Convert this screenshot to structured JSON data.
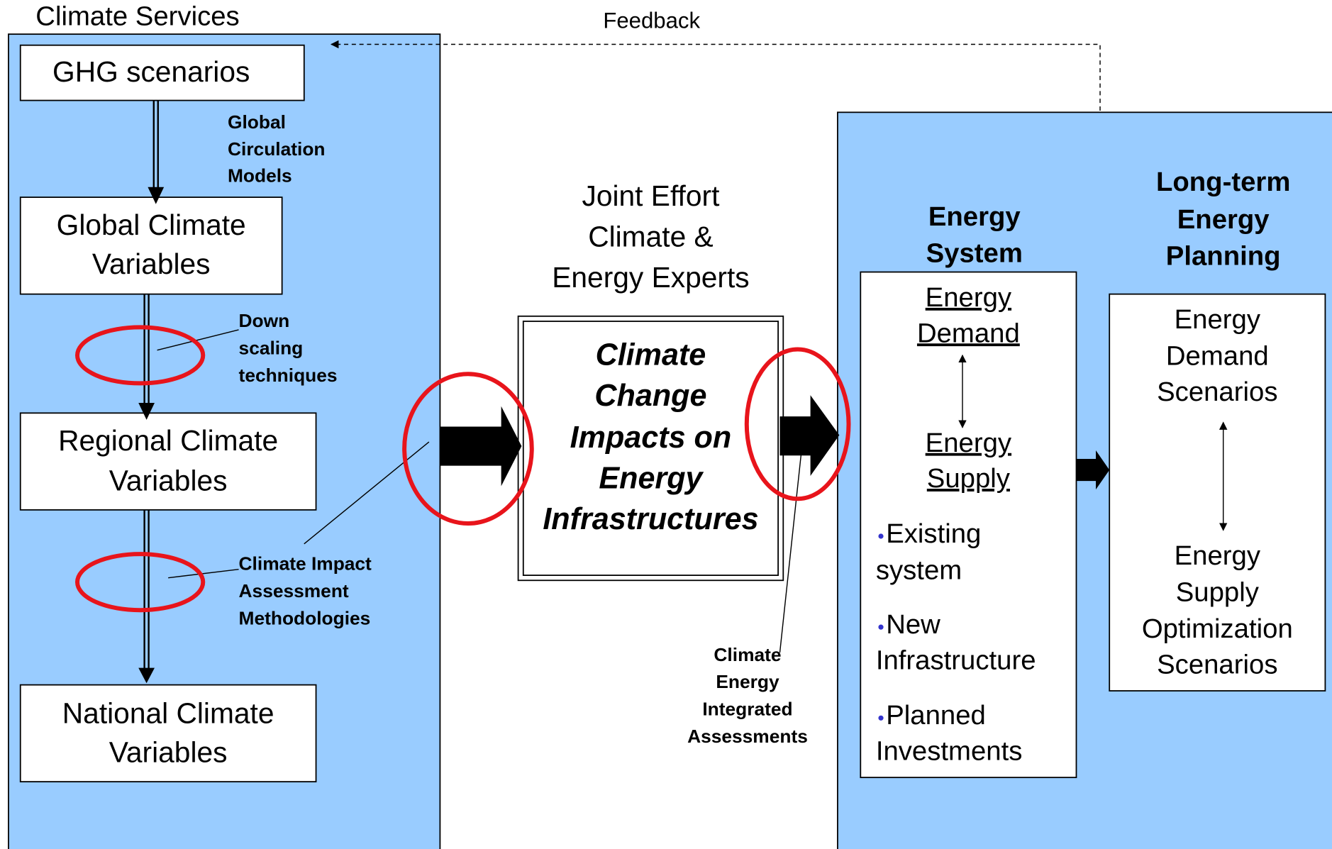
{
  "left_panel": {
    "title": "Climate Services",
    "boxes": [
      [
        "GHG scenarios"
      ],
      [
        "Global Climate",
        "Variables"
      ],
      [
        "Regional Climate",
        "Variables"
      ],
      [
        "National Climate",
        "Variables"
      ]
    ],
    "labels": [
      [
        "Global",
        "Circulation",
        "Models"
      ],
      [
        "Down",
        "scaling",
        "techniques"
      ],
      [
        "Climate Impact",
        "Assessment",
        "Methodologies"
      ]
    ]
  },
  "feedback": "Feedback",
  "center": {
    "heading": [
      "Joint Effort",
      "Climate &",
      "Energy Experts"
    ],
    "box": [
      "Climate",
      "Change",
      "Impacts on",
      "Energy",
      "Infrastructures"
    ],
    "label": [
      "Climate",
      "Energy",
      "Integrated",
      "Assessments"
    ]
  },
  "energy_system": {
    "title": [
      "Energy",
      "System"
    ],
    "demand": [
      "Energy",
      "Demand"
    ],
    "supply": [
      "Energy",
      "Supply"
    ],
    "items": [
      [
        "Existing",
        "system"
      ],
      [
        "New",
        "Infrastructure"
      ],
      [
        "Planned",
        "Investments"
      ]
    ]
  },
  "planning": {
    "title": [
      "Long-term",
      "Energy",
      "Planning"
    ],
    "demand": [
      "Energy",
      "Demand",
      "Scenarios"
    ],
    "supply": [
      "Energy",
      "Supply",
      "Optimization",
      "Scenarios"
    ]
  }
}
